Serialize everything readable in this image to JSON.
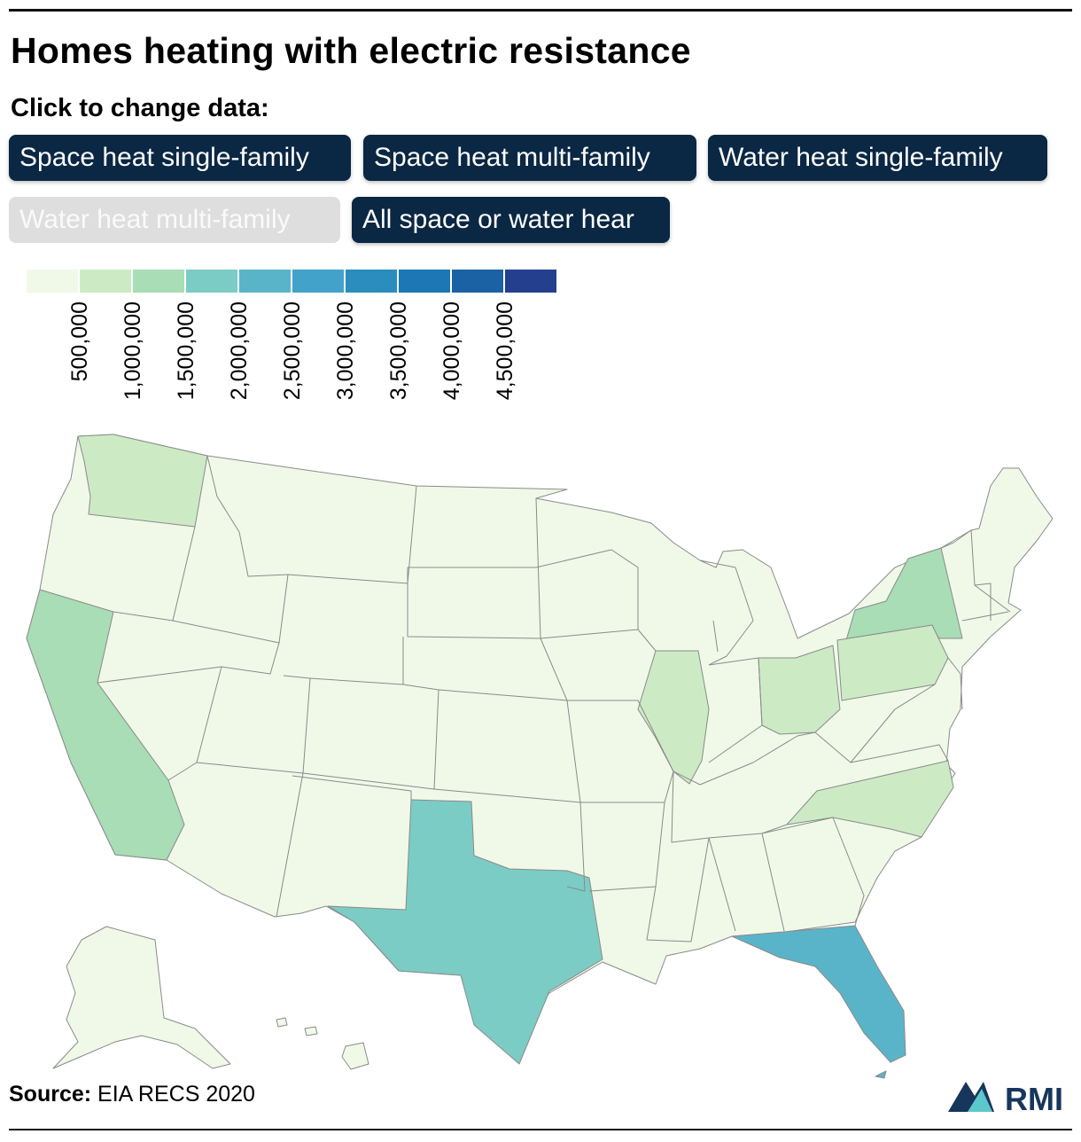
{
  "title": "Homes heating with electric resistance",
  "controls": {
    "label": "Click to change data:",
    "buttons": [
      {
        "label": "Space heat single-family",
        "active": true
      },
      {
        "label": "Space heat multi-family",
        "active": true
      },
      {
        "label": "Water heat single-family",
        "active": true
      },
      {
        "label": "Water heat multi-family",
        "active": false
      },
      {
        "label": "All space or water hear",
        "active": true
      }
    ]
  },
  "legend": {
    "tick_labels": [
      "500,000",
      "1,000,000",
      "1,500,000",
      "2,000,000",
      "2,500,000",
      "3,000,000",
      "3,500,000",
      "4,000,000",
      "4,500,000"
    ],
    "colors": [
      "#f0f9e8",
      "#ccebc5",
      "#a8ddb5",
      "#7bccc4",
      "#5ab4c9",
      "#43a2ca",
      "#2b8cbe",
      "#1c77b4",
      "#1b62a5",
      "#253f8f"
    ]
  },
  "map": {
    "states": [
      {
        "name": "Washington",
        "bin": 1
      },
      {
        "name": "California",
        "bin": 2
      },
      {
        "name": "New York",
        "bin": 2
      },
      {
        "name": "Texas",
        "bin": 3
      },
      {
        "name": "Florida",
        "bin": 4
      },
      {
        "name": "Illinois",
        "bin": 1
      },
      {
        "name": "Ohio",
        "bin": 1
      },
      {
        "name": "Pennsylvania",
        "bin": 1
      },
      {
        "name": "North Carolina",
        "bin": 1
      }
    ],
    "other_states_bin": 0
  },
  "source": {
    "label": "Source:",
    "text": "EIA RECS 2020"
  },
  "logo": {
    "text": "RMI",
    "colors": [
      "#17365c",
      "#5cc8cc"
    ]
  }
}
